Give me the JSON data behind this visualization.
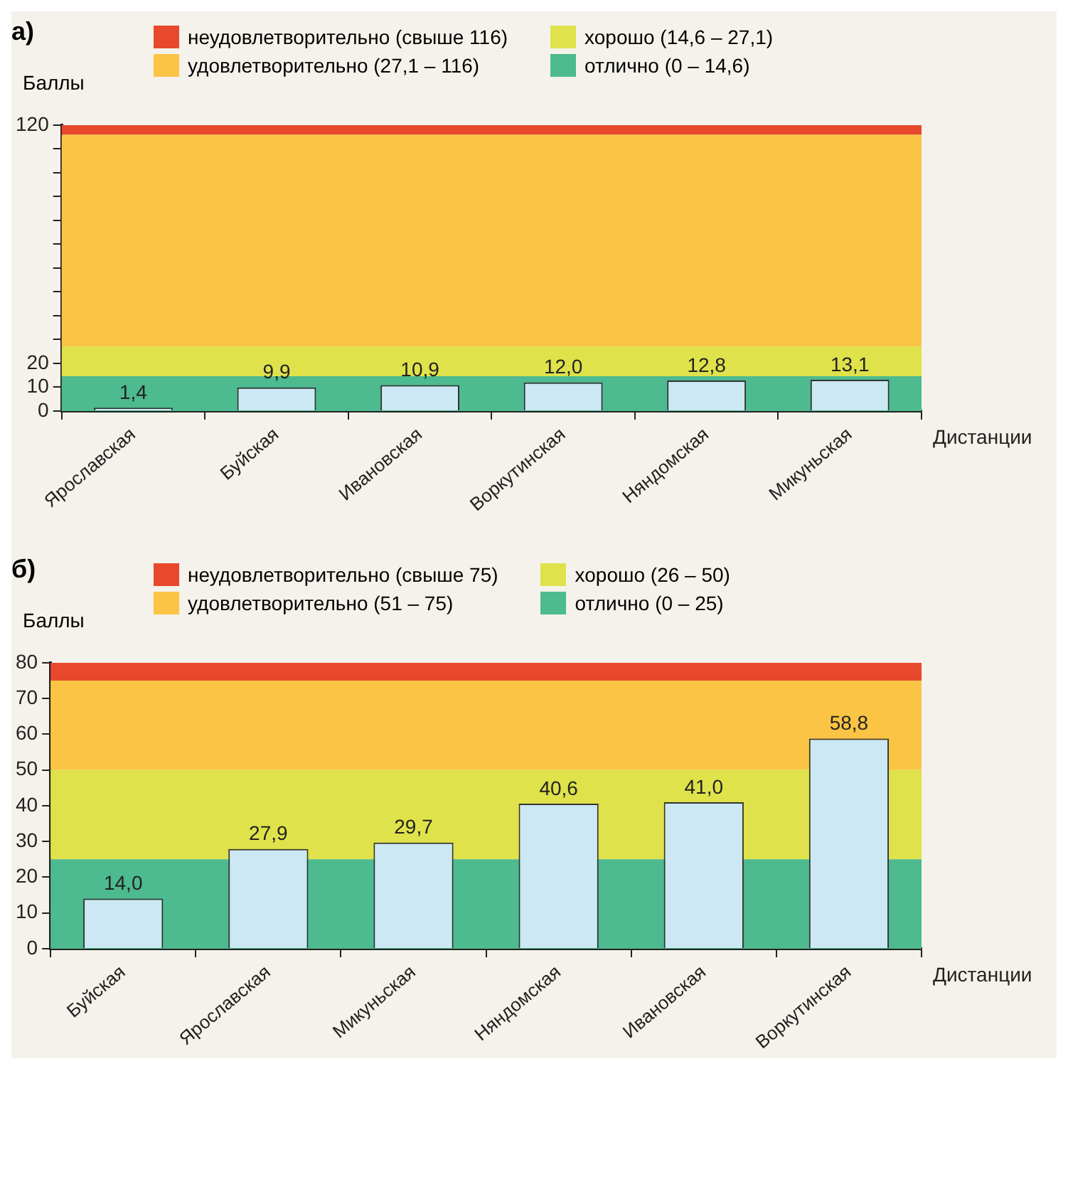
{
  "chart_data": [
    {
      "type": "bar",
      "title": "а)",
      "xlabel": "Дистанции",
      "ylabel": "Баллы",
      "legend": "top",
      "categories": [
        "Ярославская",
        "Буйская",
        "Ивановская",
        "Воркутинская",
        "Няндомская",
        "Микуньская"
      ],
      "values": [
        1.4,
        9.9,
        10.9,
        12.0,
        12.8,
        13.1
      ],
      "color": "#cce8f4",
      "value_labels": [
        "1,4",
        "9,9",
        "10,9",
        "12,0",
        "12,8",
        "13,1"
      ],
      "ylim": [
        0,
        120
      ],
      "yticks": [
        0,
        10,
        20,
        {
          "value": 30,
          "label": null
        },
        {
          "value": 40,
          "label": null
        },
        {
          "value": 50,
          "label": null
        },
        {
          "value": 60,
          "label": null
        },
        {
          "value": 70,
          "label": null
        },
        {
          "value": 80,
          "label": null
        },
        {
          "value": 90,
          "label": null
        },
        {
          "value": 100,
          "label": null
        },
        {
          "value": 110,
          "label": null
        },
        120
      ],
      "bands": [
        {
          "axis": "y",
          "from": 116,
          "to": 120,
          "label": "неудовлетворительно (свыше 116)",
          "color": "#e8482c"
        },
        {
          "axis": "y",
          "from": 27.1,
          "to": 116,
          "label": "удовлетворительно (27,1 – 116)",
          "color": "#fbc445"
        },
        {
          "axis": "y",
          "from": 14.6,
          "to": 27.1,
          "label": "хорошо (14,6 – 27,1)",
          "color": "#dfe24a"
        },
        {
          "axis": "y",
          "from": 0,
          "to": 14.6,
          "label": "отлично (0 – 14,6)",
          "color": "#4dba8f"
        }
      ]
    },
    {
      "type": "bar",
      "title": "б)",
      "xlabel": "Дистанции",
      "ylabel": "Баллы",
      "legend": "top",
      "categories": [
        "Буйская",
        "Ярославская",
        "Микуньская",
        "Няндомская",
        "Ивановская",
        "Воркутинская"
      ],
      "values": [
        14.0,
        27.9,
        29.7,
        40.6,
        41.0,
        58.8
      ],
      "color": "#cce8f4",
      "value_labels": [
        "14,0",
        "27,9",
        "29,7",
        "40,6",
        "41,0",
        "58,8"
      ],
      "ylim": [
        0,
        80
      ],
      "yticks": [
        0,
        10,
        20,
        30,
        40,
        50,
        60,
        70,
        80
      ],
      "bands": [
        {
          "axis": "y",
          "from": 75,
          "to": 80,
          "label": "неудовлетворительно (свыше 75)",
          "color": "#e8482c"
        },
        {
          "axis": "y",
          "from": 50,
          "to": 75,
          "label": "удовлетворительно (51 – 75)",
          "color": "#fbc445"
        },
        {
          "axis": "y",
          "from": 25,
          "to": 50,
          "label": "хорошо (26 – 50)",
          "color": "#dfe24a"
        },
        {
          "axis": "y",
          "from": 0,
          "to": 25,
          "label": "отлично (0 – 25)",
          "color": "#4dba8f"
        }
      ]
    }
  ]
}
